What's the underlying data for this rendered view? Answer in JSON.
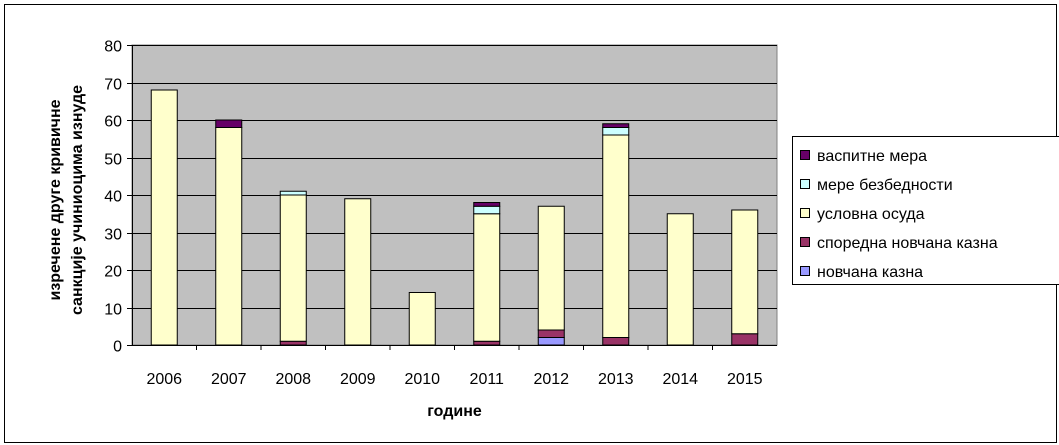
{
  "chart_data": {
    "type": "bar",
    "stacked": true,
    "title": "",
    "xlabel": "године",
    "ylabel_lines": [
      "изречене друге кривичне",
      "санкције учиниоцима изнуде"
    ],
    "ylim": [
      0,
      80
    ],
    "yticks": [
      "0",
      "10",
      "20",
      "30",
      "40",
      "50",
      "60",
      "70",
      "80"
    ],
    "grid": true,
    "legend_position": "right",
    "categories": [
      "2006",
      "2007",
      "2008",
      "2009",
      "2010",
      "2011",
      "2012",
      "2013",
      "2014",
      "2015"
    ],
    "series": [
      {
        "name": "новчана казна",
        "color": "#9999ff",
        "values": [
          0,
          0,
          0,
          0,
          0,
          0,
          2,
          0,
          0,
          0
        ]
      },
      {
        "name": "споредна новчана казна",
        "color": "#993366",
        "values": [
          0,
          0,
          1,
          0,
          0,
          1,
          2,
          2,
          0,
          3
        ]
      },
      {
        "name": "условна осуда",
        "color": "#ffffcc",
        "values": [
          68,
          58,
          39,
          39,
          14,
          34,
          33,
          54,
          35,
          33
        ]
      },
      {
        "name": "мере безбедности",
        "color": "#ccffff",
        "values": [
          0,
          0,
          1,
          0,
          0,
          2,
          0,
          2,
          0,
          0
        ]
      },
      {
        "name": "васпитне мера",
        "color": "#660066",
        "values": [
          0,
          2,
          0,
          0,
          0,
          1,
          0,
          1,
          0,
          0
        ]
      }
    ],
    "plot_background": "#c0c0c0"
  }
}
